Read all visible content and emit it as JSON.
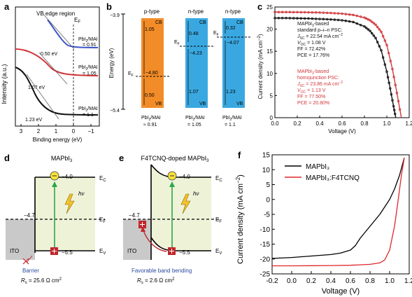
{
  "panel_labels": {
    "a": "a",
    "b": "b",
    "c": "c",
    "d": "d",
    "e": "e",
    "f": "f"
  },
  "panel_a": {
    "region": "VB edge region",
    "ylabel": "Intensity (a.u.)",
    "xlabel": "Binding energy (eV)",
    "xticks": [
      "3",
      "2",
      "1",
      "0",
      "−1"
    ],
    "ef": "E",
    "ef_sub": "F",
    "curves": [
      {
        "label1": "PbI",
        "sub": "2",
        "label2": "/MAI",
        "ratio": "= 0.91",
        "onset": "0.50 eV",
        "color": "#3b55c9"
      },
      {
        "label1": "PbI",
        "sub": "2",
        "label2": "/MAI",
        "ratio": "= 1.05",
        "onset": "1.07 eV",
        "color": "#d1363b"
      },
      {
        "label1": "PbI",
        "sub": "2",
        "label2": "/MAI",
        "ratio": "= 1.1",
        "onset": "1.23 eV",
        "color": "#111111"
      }
    ]
  },
  "panel_b": {
    "ylabel": "Energy (eV)",
    "ytop": "−3.9",
    "ybottom": "−5.4",
    "columns": [
      {
        "type": "p-type",
        "cb": "CB",
        "vb": "VB",
        "ecb": "1.05",
        "evb": "0.50",
        "level": "−4.80",
        "ef": "E",
        "ef_sub": "F",
        "ratio1": "PbI",
        "ratio_sub": "2",
        "ratio2": "/MAI",
        "ratio3": "≈ 0.91",
        "color": "#f28c28"
      },
      {
        "type": "n-type",
        "cb": "CB",
        "vb": "VB",
        "ecb": "0.48",
        "evb": "1.07",
        "level": "−4.23",
        "ef": "E",
        "ef_sub": "F",
        "ratio1": "PbI",
        "ratio_sub": "2",
        "ratio2": "/MAI",
        "ratio3": "= 1.05",
        "color": "#3aa8e0"
      },
      {
        "type": "n-type",
        "cb": "CB",
        "vb": "VB",
        "ecb": "0.32",
        "evb": "1.23",
        "level": "−4.07",
        "ef": "E",
        "ef_sub": "F",
        "ratio1": "PbI",
        "ratio_sub": "2",
        "ratio2": "/MAI",
        "ratio3": "= 1.1",
        "color": "#3aa8e0"
      }
    ]
  },
  "panel_c": {
    "xlabel": "Voltage (V)",
    "ylabel": "Current density (mA cm",
    "ylabel_sup": "−2",
    "ylabel_end": ")",
    "yticks": [
      "0",
      "5",
      "10",
      "15",
      "20",
      "25"
    ],
    "xticks": [
      "0.0",
      "0.2",
      "0.4",
      "0.6",
      "0.8",
      "1.0",
      "1.2"
    ],
    "black_lines": [
      "MAPbI",
      "3",
      "-based",
      "standard p–i–n PSC:",
      "J",
      "SC",
      " = 22.54 mA cm",
      "−2",
      "V",
      "OC",
      " = 1.08 V",
      "FF = 72.42%",
      "PCE = 17.76%"
    ],
    "red_lines": [
      "MAPbI",
      "3",
      "-based",
      "homojunction PSC:",
      "J",
      "SC",
      " = 23.86 mA cm",
      "−2",
      "V",
      "OC",
      " = 1.13 V",
      "FF = 77.50%",
      "PCE = 20.80%"
    ]
  },
  "panel_d": {
    "title": "MAPbI",
    "title_sub": "3",
    "cb_level": "−4.0",
    "vb_level": "−5.5",
    "ito_level": "−4.7",
    "ec": "E",
    "ec_sub": "C",
    "ef": "E",
    "ef_sub": "F",
    "ev": "E",
    "ev_sub": "V",
    "hv": "hν",
    "ito": "ITO",
    "note": "Barrier",
    "rs": "R",
    "rs_sub": "s",
    "rs_val": " = 25.6 Ω cm",
    "rs_sup": "2"
  },
  "panel_e": {
    "title": "F4TCNQ-doped MAPbI",
    "title_sub": "3",
    "cb_level": "−4.0",
    "vb_level": "−5.5",
    "ito_level": "−4.7",
    "ec": "E",
    "ec_sub": "C",
    "ef": "E",
    "ef_sub": "F",
    "ev": "E",
    "ev_sub": "V",
    "hv": "hν",
    "ito": "ITO",
    "note": "Favorable band bending",
    "rs": "R",
    "rs_sub": "s",
    "rs_val": " = 2.6 Ω cm",
    "rs_sup": "2"
  },
  "panel_f": {
    "xlabel": "Voltage (V)",
    "ylabel": "Current density (mA cm",
    "ylabel_sup": "−2",
    "ylabel_end": ")",
    "yticks": [
      "15",
      "10",
      "5",
      "0",
      "-5",
      "-10",
      "-15",
      "-20",
      "-25"
    ],
    "xticks": [
      "-0.2",
      "0.0",
      "0.2",
      "0.4",
      "0.6",
      "0.8",
      "1.0",
      "1.2"
    ],
    "legend": [
      {
        "label": "MAPbI₃",
        "color": "#000000"
      },
      {
        "label": "MAPbI₃:F4TCNQ",
        "color": "#e0262b"
      }
    ]
  },
  "chart_data": [
    {
      "type": "line",
      "panel": "c",
      "xlabel": "Voltage (V)",
      "ylabel": "Current density (mA cm−2)",
      "xlim": [
        0.0,
        1.2
      ],
      "ylim": [
        0,
        25
      ],
      "series": [
        {
          "name": "standard p–i–n PSC",
          "color": "#111111",
          "x": [
            0.0,
            0.1,
            0.2,
            0.3,
            0.4,
            0.5,
            0.6,
            0.7,
            0.8,
            0.85,
            0.9,
            0.95,
            1.0,
            1.03,
            1.06,
            1.08
          ],
          "y": [
            22.5,
            22.5,
            22.45,
            22.4,
            22.3,
            22.2,
            22.0,
            21.6,
            20.6,
            19.6,
            18.0,
            15.2,
            10.4,
            6.6,
            2.6,
            0.0
          ]
        },
        {
          "name": "homojunction PSC",
          "color": "#d1363b",
          "x": [
            0.0,
            0.1,
            0.2,
            0.3,
            0.4,
            0.5,
            0.6,
            0.7,
            0.8,
            0.85,
            0.9,
            0.95,
            1.0,
            1.05,
            1.09,
            1.13
          ],
          "y": [
            23.86,
            23.85,
            23.83,
            23.8,
            23.75,
            23.65,
            23.5,
            23.2,
            22.6,
            22.0,
            21.0,
            19.4,
            16.4,
            11.0,
            5.6,
            0.0
          ]
        }
      ]
    },
    {
      "type": "line",
      "panel": "f",
      "xlabel": "Voltage (V)",
      "ylabel": "Current density (mA cm−2)",
      "xlim": [
        -0.2,
        1.2
      ],
      "ylim": [
        -25,
        15
      ],
      "series": [
        {
          "name": "MAPbI₃",
          "color": "#000000",
          "x": [
            -0.2,
            0.0,
            0.2,
            0.4,
            0.5,
            0.6,
            0.65,
            0.7,
            0.8,
            0.9,
            1.0,
            1.05,
            1.1,
            1.15
          ],
          "y": [
            -19.8,
            -19.5,
            -19.0,
            -18.5,
            -18.0,
            -17.0,
            -15.5,
            -13.0,
            -9.0,
            -5.0,
            0.0,
            3.5,
            8.0,
            14.0
          ]
        },
        {
          "name": "MAPbI₃:F4TCNQ",
          "color": "#e0262b",
          "x": [
            -0.2,
            0.0,
            0.2,
            0.4,
            0.6,
            0.8,
            0.9,
            0.95,
            1.0,
            1.05,
            1.08,
            1.1,
            1.12,
            1.15
          ],
          "y": [
            -22.3,
            -22.3,
            -22.25,
            -22.2,
            -22.1,
            -21.8,
            -21.3,
            -20.3,
            -17.0,
            -9.0,
            -2.0,
            3.0,
            8.0,
            14.0
          ]
        }
      ]
    }
  ]
}
